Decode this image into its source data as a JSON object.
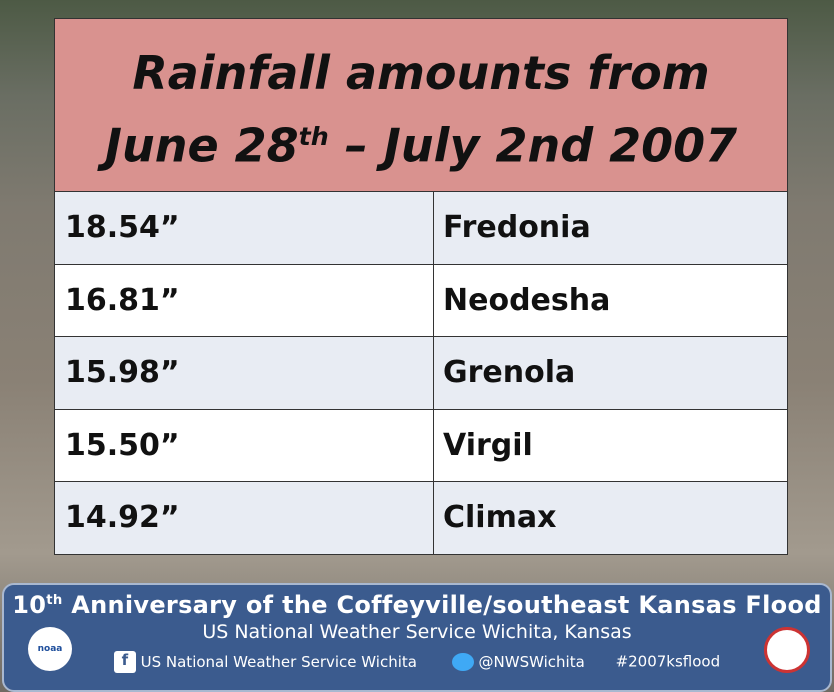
{
  "header": {
    "line1": "Rainfall amounts from",
    "line2_pre": "June 28",
    "line2_sup": "th",
    "line2_post": " – July 2nd 2007"
  },
  "table": {
    "rows": [
      [
        "18.54”",
        "Fredonia"
      ],
      [
        "16.81”",
        "Neodesha"
      ],
      [
        "15.98”",
        "Grenola"
      ],
      [
        "15.50”",
        "Virgil"
      ],
      [
        "14.92”",
        "Climax"
      ]
    ]
  },
  "footer": {
    "title_pre": "10",
    "title_sup": "th",
    "title_post": " Anniversary of the Coffeyville/southeast Kansas Flood",
    "subtitle": "US National Weather Service Wichita, Kansas",
    "facebook": "US National Weather Service Wichita",
    "twitter": "@NWSWichita",
    "hashtag": "#2007ksflood",
    "logo_left": "noaa"
  }
}
